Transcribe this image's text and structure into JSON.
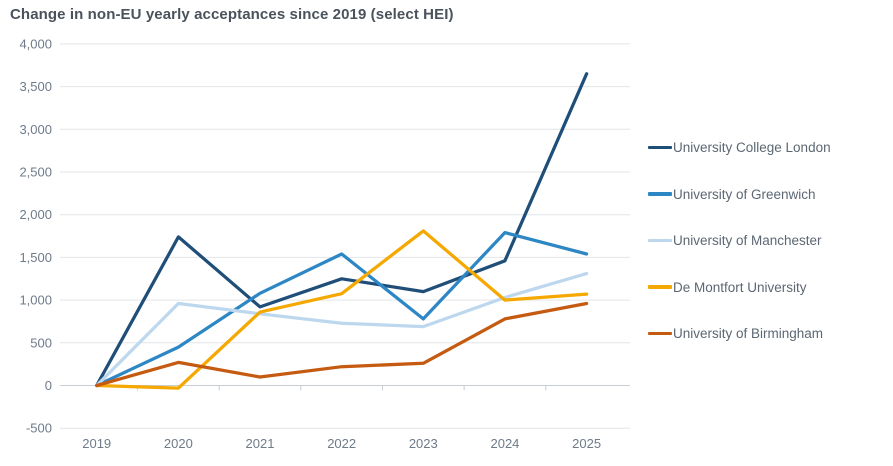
{
  "title": "Change in non-EU yearly acceptances since 2019 (select HEI)",
  "chart_data": {
    "type": "line",
    "title": "Change in non-EU yearly acceptances since 2019 (select HEI)",
    "categories": [
      "2019",
      "2020",
      "2021",
      "2022",
      "2023",
      "2024",
      "2025"
    ],
    "series": [
      {
        "name": "University College London",
        "color": "#1f4e79",
        "values": [
          0,
          1740,
          920,
          1250,
          1100,
          1460,
          3650
        ]
      },
      {
        "name": "University of Greenwich",
        "color": "#2e87c5",
        "values": [
          0,
          450,
          1080,
          1540,
          780,
          1790,
          1540
        ]
      },
      {
        "name": "University of Manchester",
        "color": "#bdd7ee",
        "values": [
          0,
          960,
          840,
          730,
          690,
          1030,
          1310
        ]
      },
      {
        "name": "De Montfort University",
        "color": "#f5a800",
        "values": [
          0,
          -30,
          860,
          1075,
          1810,
          1000,
          1070
        ]
      },
      {
        "name": "University of Birmingham",
        "color": "#c55a11",
        "values": [
          0,
          270,
          100,
          220,
          260,
          780,
          960
        ]
      }
    ],
    "ylim": [
      -500,
      4000
    ],
    "y_step": 500,
    "y_tick_labels": [
      "4,000",
      "3,500",
      "3,000",
      "2,500",
      "2,000",
      "1,500",
      "1,000",
      "500",
      "0",
      "-500"
    ],
    "grid": "horizontal",
    "legend_position": "right",
    "axis_color": "#c9ced3",
    "gridline_color": "#e2e5e8"
  }
}
